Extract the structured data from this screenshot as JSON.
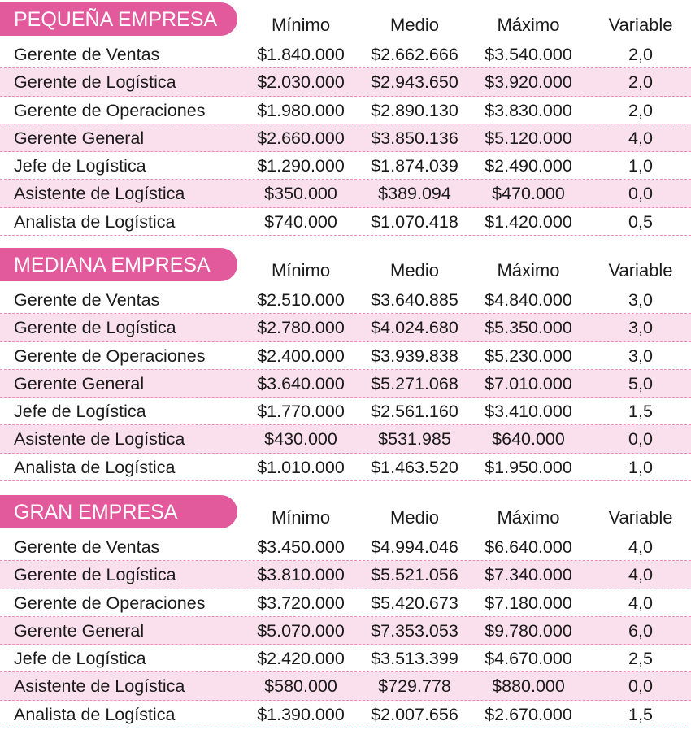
{
  "columns": [
    "Mínimo",
    "Medio",
    "Máximo",
    "Variable"
  ],
  "colors": {
    "badge": "#e25a9c",
    "row_alt": "#fae0ec",
    "divider": "#ee8cba"
  },
  "sections": [
    {
      "title": "PEQUEÑA EMPRESA",
      "rows": [
        [
          "Gerente de Ventas",
          "$1.840.000",
          "$2.662.666",
          "$3.540.000",
          "2,0"
        ],
        [
          "Gerente de Logística",
          "$2.030.000",
          "$2.943.650",
          "$3.920.000",
          "2,0"
        ],
        [
          "Gerente de Operaciones",
          "$1.980.000",
          "$2.890.130",
          "$3.830.000",
          "2,0"
        ],
        [
          "Gerente General",
          "$2.660.000",
          "$3.850.136",
          "$5.120.000",
          "4,0"
        ],
        [
          "Jefe de Logística",
          "$1.290.000",
          "$1.874.039",
          "$2.490.000",
          "1,0"
        ],
        [
          "Asistente de Logística",
          "$350.000",
          "$389.094",
          "$470.000",
          "0,0"
        ],
        [
          "Analista de Logística",
          "$740.000",
          "$1.070.418",
          "$1.420.000",
          "0,5"
        ]
      ]
    },
    {
      "title": "MEDIANA EMPRESA",
      "rows": [
        [
          "Gerente de Ventas",
          "$2.510.000",
          "$3.640.885",
          "$4.840.000",
          "3,0"
        ],
        [
          "Gerente de Logística",
          "$2.780.000",
          "$4.024.680",
          "$5.350.000",
          "3,0"
        ],
        [
          "Gerente de Operaciones",
          "$2.400.000",
          "$3.939.838",
          "$5.230.000",
          "3,0"
        ],
        [
          "Gerente General",
          "$3.640.000",
          "$5.271.068",
          "$7.010.000",
          "5,0"
        ],
        [
          "Jefe de Logística",
          "$1.770.000",
          "$2.561.160",
          "$3.410.000",
          "1,5"
        ],
        [
          "Asistente de Logística",
          "$430.000",
          "$531.985",
          "$640.000",
          "0,0"
        ],
        [
          "Analista de Logística",
          "$1.010.000",
          "$1.463.520",
          "$1.950.000",
          "1,0"
        ]
      ]
    },
    {
      "title": "GRAN EMPRESA",
      "rows": [
        [
          "Gerente de Ventas",
          "$3.450.000",
          "$4.994.046",
          "$6.640.000",
          "4,0"
        ],
        [
          "Gerente de Logística",
          "$3.810.000",
          "$5.521.056",
          "$7.340.000",
          "4,0"
        ],
        [
          "Gerente de Operaciones",
          "$3.720.000",
          "$5.420.673",
          "$7.180.000",
          "4,0"
        ],
        [
          "Gerente General",
          "$5.070.000",
          "$7.353.053",
          "$9.780.000",
          "6,0"
        ],
        [
          "Jefe de Logística",
          "$2.420.000",
          "$3.513.399",
          "$4.670.000",
          "2,5"
        ],
        [
          "Asistente de Logística",
          "$580.000",
          "$729.778",
          "$880.000",
          "0,0"
        ],
        [
          "Analista de Logística",
          "$1.390.000",
          "$2.007.656",
          "$2.670.000",
          "1,5"
        ]
      ]
    }
  ]
}
